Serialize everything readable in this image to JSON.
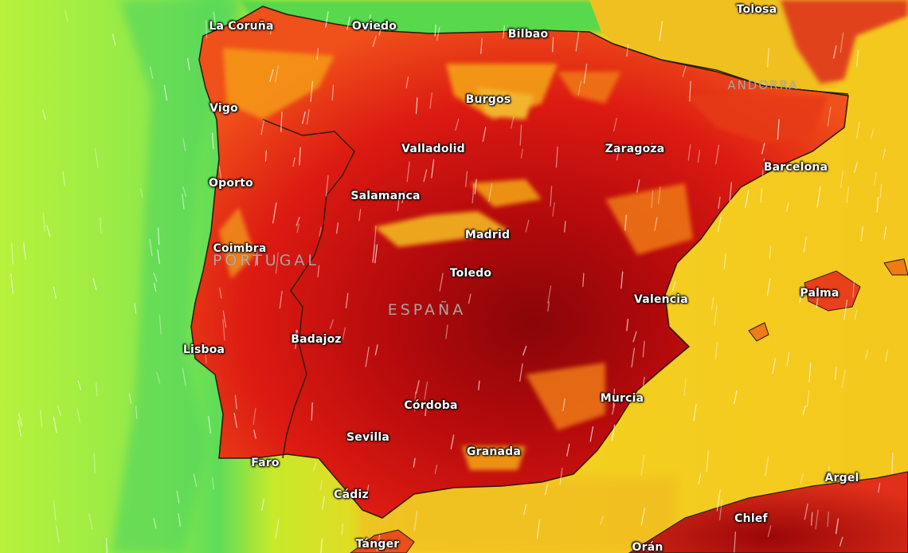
{
  "map": {
    "type": "temperature-heatmap",
    "colors": {
      "sea_far": "#b5f23a",
      "sea_coast": "#5ee05a",
      "sea_warm": "#f2d320",
      "land_hot": "#e01a12",
      "land_very_hot": "#a0060a",
      "land_warm": "#f59a14",
      "north_coast": "#5fd447",
      "wind_streak": "#ffffff",
      "border": "#2a1a10"
    },
    "country_labels": {
      "portugal": "PORTUGAL",
      "espana": "ESPAÑA",
      "andorra": "ANDORRA"
    },
    "cities": {
      "la_coruna": "La Coruña",
      "oviedo": "Oviedo",
      "bilbao": "Bilbao",
      "tolosa": "Tolosa",
      "vigo": "Vigo",
      "burgos": "Burgos",
      "valladolid": "Valladolid",
      "zaragoza": "Zaragoza",
      "barcelona": "Barcelona",
      "oporto": "Oporto",
      "salamanca": "Salamanca",
      "madrid": "Madrid",
      "coimbra": "Coimbra",
      "toledo": "Toledo",
      "valencia": "Valencia",
      "palma": "Palma",
      "lisboa": "Lisboa",
      "badajoz": "Badajoz",
      "murcia": "Murcia",
      "cordoba": "Córdoba",
      "sevilla": "Sevilla",
      "granada": "Granada",
      "faro": "Faro",
      "cadiz": "Cádiz",
      "argel": "Argel",
      "chlef": "Chlef",
      "tanger": "Tánger",
      "oran": "Orán"
    }
  }
}
